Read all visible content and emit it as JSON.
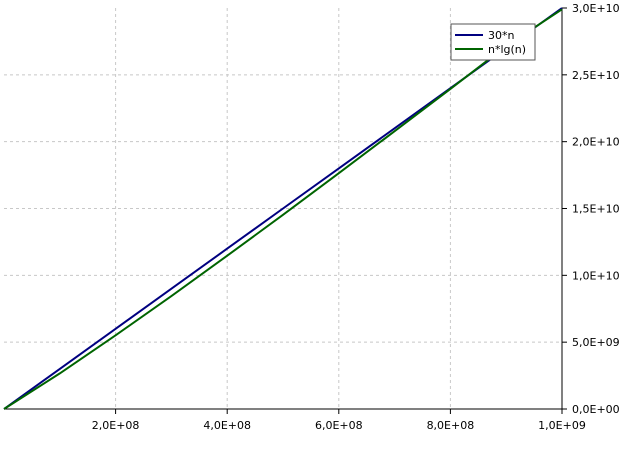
{
  "chart_data": {
    "type": "line",
    "x_ticks": [
      200000000,
      400000000,
      600000000,
      800000000,
      1000000000
    ],
    "x_tick_labels": [
      "2,0E+08",
      "4,0E+08",
      "6,0E+08",
      "8,0E+08",
      "1,0E+09"
    ],
    "y_ticks": [
      0,
      5000000000,
      10000000000,
      15000000000,
      20000000000,
      25000000000,
      30000000000
    ],
    "y_tick_labels": [
      "0,0E+00",
      "5,0E+09",
      "1,0E+10",
      "1,5E+10",
      "2,0E+10",
      "2,5E+10",
      "3,0E+10"
    ],
    "xlim": [
      0,
      1000000000
    ],
    "ylim": [
      0,
      30000000000
    ],
    "y_axis_side": "right",
    "grid": true,
    "legend_position": "top-right",
    "series": [
      {
        "name": "30*n",
        "color": "#000080",
        "x": [
          0,
          100000000,
          200000000,
          300000000,
          400000000,
          500000000,
          600000000,
          700000000,
          800000000,
          900000000,
          1000000000
        ],
        "y": [
          0,
          3000000000,
          6000000000,
          9000000000,
          12000000000,
          15000000000,
          18000000000,
          21000000000,
          24000000000,
          27000000000,
          30000000000
        ]
      },
      {
        "name": "n*lg(n)",
        "color": "#006400",
        "x": [
          0,
          100000000,
          200000000,
          300000000,
          400000000,
          500000000,
          600000000,
          700000000,
          800000000,
          900000000,
          1000000000
        ],
        "y": [
          0,
          2660000000,
          5510000000,
          8450000000,
          11470000000,
          14530000000,
          17640000000,
          20780000000,
          23950000000,
          27150000000,
          29900000000
        ]
      }
    ]
  }
}
